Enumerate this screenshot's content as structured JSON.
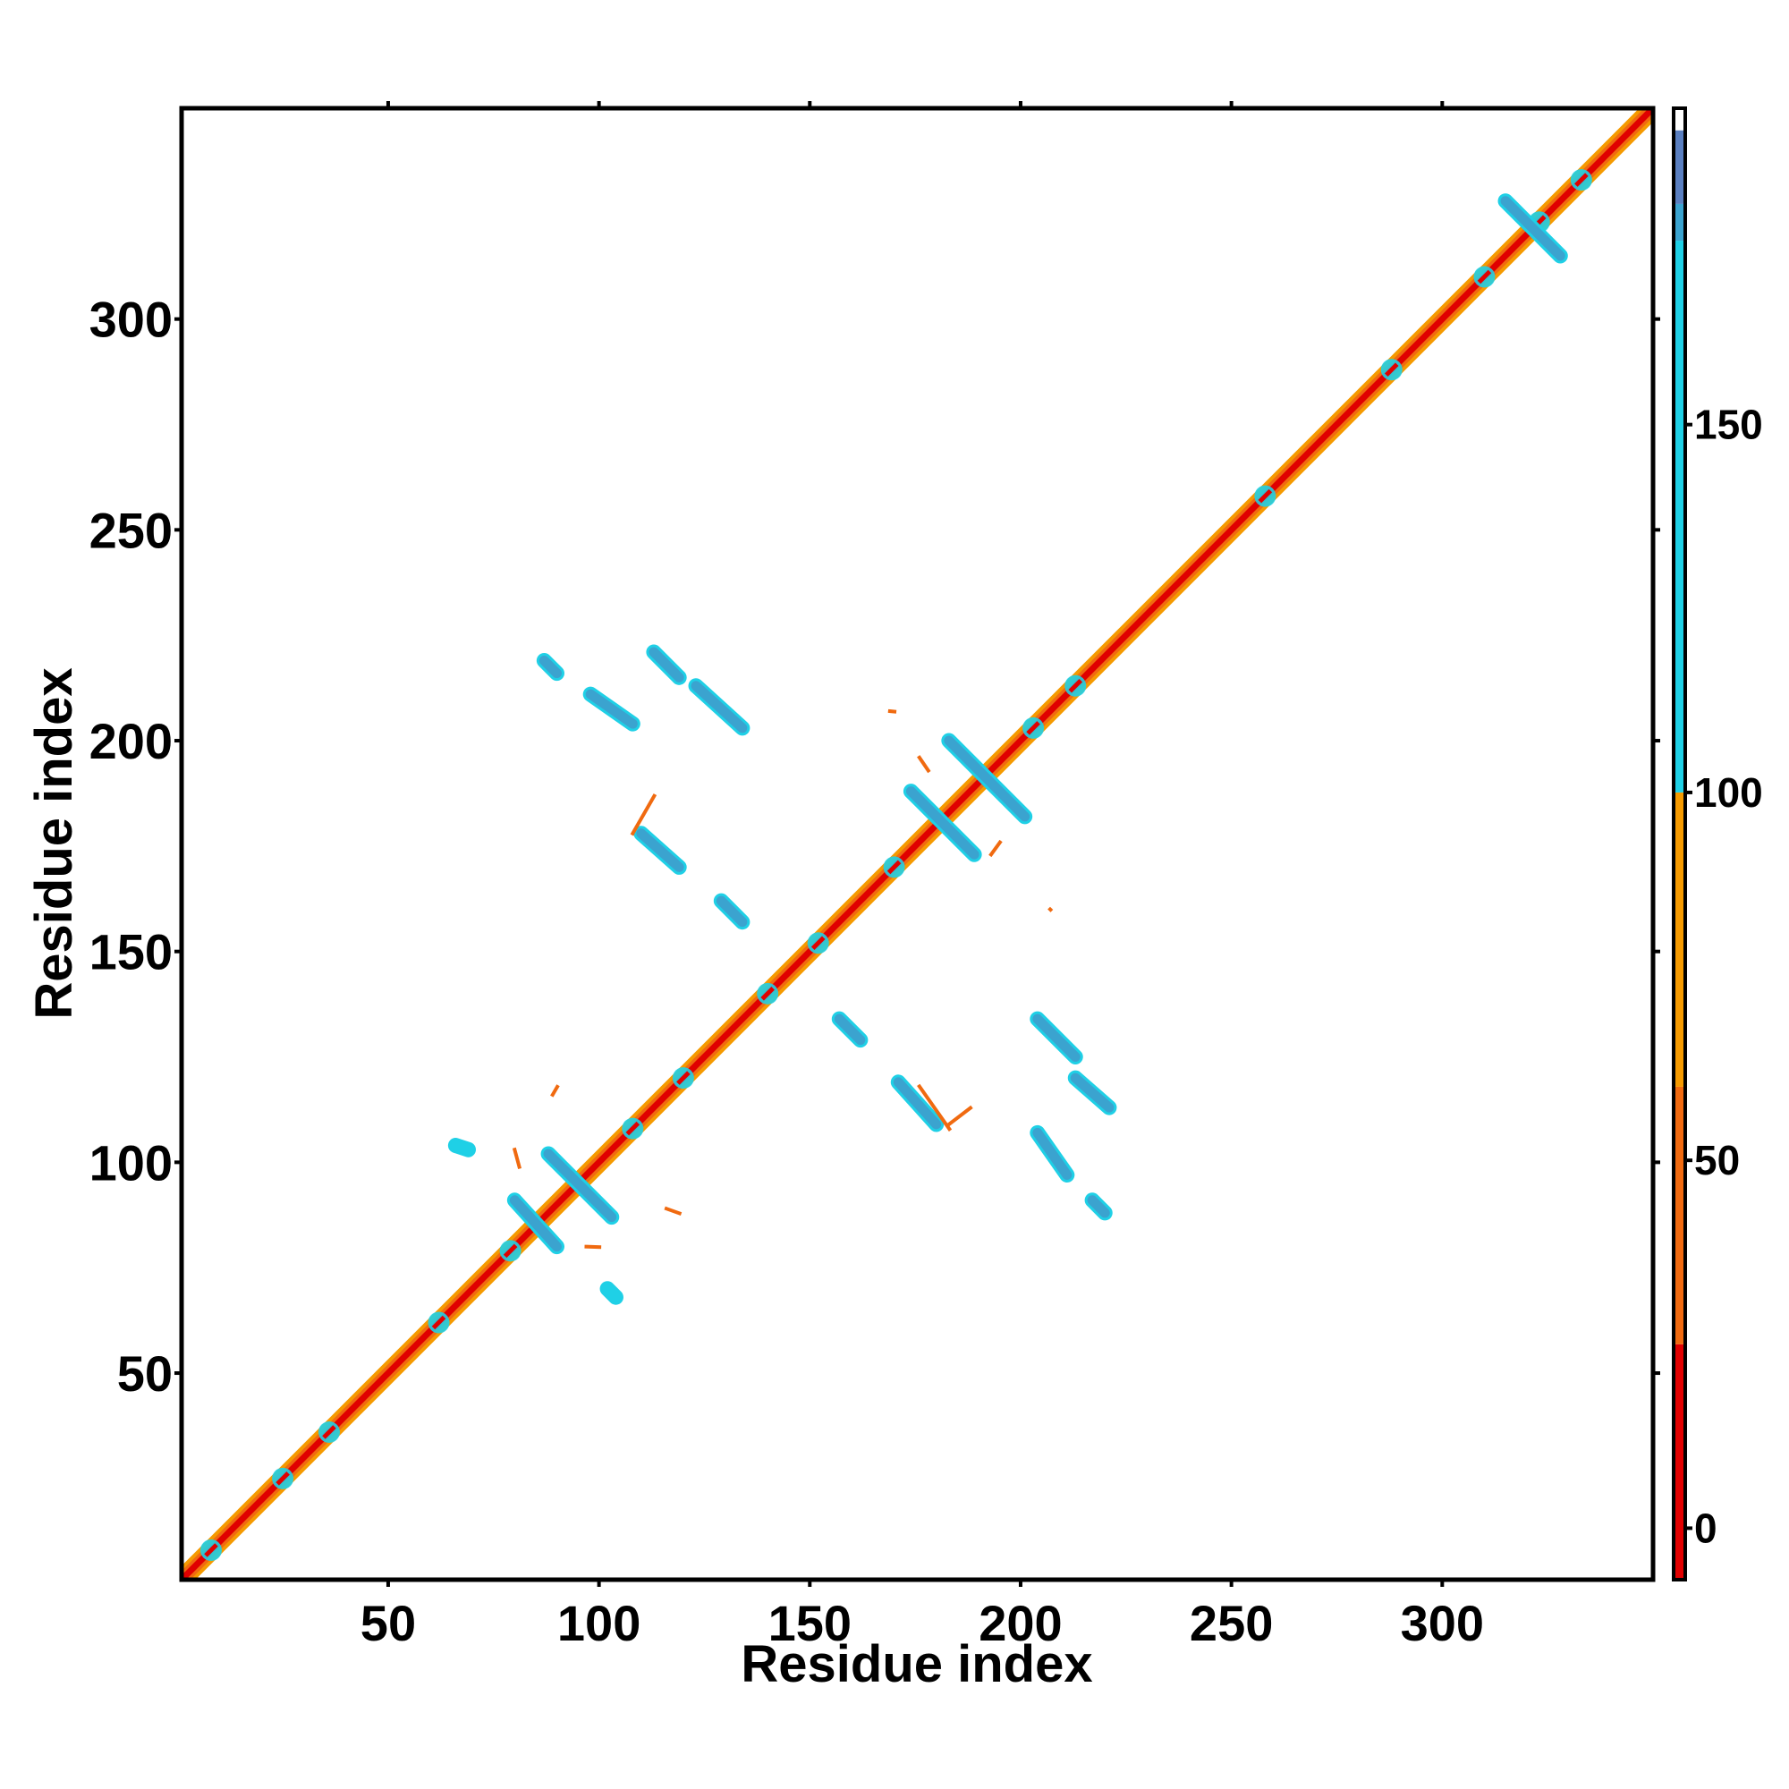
{
  "chart_data": {
    "type": "heatmap",
    "title": "",
    "xlabel": "Residue index",
    "ylabel": "Residue index",
    "xlim": [
      1,
      350
    ],
    "ylim": [
      1,
      350
    ],
    "x_ticks": [
      50,
      100,
      150,
      200,
      250,
      300
    ],
    "y_ticks": [
      50,
      100,
      150,
      200,
      250,
      300
    ],
    "grid": false,
    "legend": "colorbar right",
    "colorbar": {
      "ticks": [
        0,
        50,
        100,
        150
      ],
      "range": [
        -7,
        193
      ],
      "bands": [
        {
          "from": -7,
          "to": 25,
          "color": "#e00000"
        },
        {
          "from": 25,
          "to": 60,
          "color": "#f06a10"
        },
        {
          "from": 60,
          "to": 100,
          "color": "#f59a00"
        },
        {
          "from": 100,
          "to": 175,
          "color": "#1fd0e6"
        },
        {
          "from": 175,
          "to": 180,
          "color": "#3ba3cf"
        },
        {
          "from": 180,
          "to": 190,
          "color": "#5a7fc0"
        },
        {
          "from": 190,
          "to": 193,
          "color": "#ffffff"
        }
      ]
    },
    "diagonal": {
      "from": 1,
      "to": 350,
      "center_color": "#e00000",
      "edge_colors": [
        "#f06a10",
        "#f59a00"
      ]
    },
    "diagonal_clusters": [
      {
        "x": 8,
        "y": 8,
        "color": "#1fd0e6"
      },
      {
        "x": 25,
        "y": 25,
        "color": "#1fd0e6"
      },
      {
        "x": 36,
        "y": 36,
        "color": "#1fd0e6"
      },
      {
        "x": 62,
        "y": 62,
        "color": "#1fd0e6"
      },
      {
        "x": 79,
        "y": 79,
        "color": "#1fd0e6"
      },
      {
        "x": 108,
        "y": 108,
        "color": "#1fd0e6"
      },
      {
        "x": 120,
        "y": 120,
        "color": "#1fd0e6"
      },
      {
        "x": 140,
        "y": 140,
        "color": "#1fd0e6"
      },
      {
        "x": 152,
        "y": 152,
        "color": "#1fd0e6"
      },
      {
        "x": 170,
        "y": 170,
        "color": "#1fd0e6"
      },
      {
        "x": 203,
        "y": 203,
        "color": "#1fd0e6"
      },
      {
        "x": 213,
        "y": 213,
        "color": "#1fd0e6"
      },
      {
        "x": 258,
        "y": 258,
        "color": "#1fd0e6"
      },
      {
        "x": 288,
        "y": 288,
        "color": "#1fd0e6"
      },
      {
        "x": 310,
        "y": 310,
        "color": "#1fd0e6"
      },
      {
        "x": 323,
        "y": 323,
        "color": "#1fd0e6"
      },
      {
        "x": 333,
        "y": 333,
        "color": "#1fd0e6"
      }
    ],
    "contact_bands": [
      {
        "x1": 80,
        "y1": 91,
        "x2": 90,
        "y2": 80,
        "color": "#3ba3cf",
        "edge": "#1fd0e6"
      },
      {
        "x1": 88,
        "y1": 102,
        "x2": 103,
        "y2": 87,
        "color": "#3ba3cf",
        "edge": "#1fd0e6"
      },
      {
        "x1": 174,
        "y1": 188,
        "x2": 189,
        "y2": 173,
        "color": "#3ba3cf",
        "edge": "#1fd0e6"
      },
      {
        "x1": 183,
        "y1": 200,
        "x2": 201,
        "y2": 182,
        "color": "#3ba3cf",
        "edge": "#1fd0e6"
      },
      {
        "x1": 315,
        "y1": 328,
        "x2": 328,
        "y2": 315,
        "color": "#3ba3cf",
        "edge": "#1fd0e6"
      },
      {
        "x1": 87,
        "y1": 219,
        "x2": 90,
        "y2": 216,
        "color": "#3ba3cf",
        "edge": "#1fd0e6"
      },
      {
        "x1": 98,
        "y1": 211,
        "x2": 108,
        "y2": 204,
        "color": "#3ba3cf",
        "edge": "#1fd0e6"
      },
      {
        "x1": 113,
        "y1": 221,
        "x2": 119,
        "y2": 215,
        "color": "#3ba3cf",
        "edge": "#1fd0e6"
      },
      {
        "x1": 123,
        "y1": 213,
        "x2": 134,
        "y2": 203,
        "color": "#3ba3cf",
        "edge": "#1fd0e6"
      },
      {
        "x1": 110,
        "y1": 178,
        "x2": 119,
        "y2": 170,
        "color": "#3ba3cf",
        "edge": "#1fd0e6"
      },
      {
        "x1": 129,
        "y1": 162,
        "x2": 134,
        "y2": 157,
        "color": "#3ba3cf",
        "edge": "#1fd0e6"
      },
      {
        "x1": 157,
        "y1": 134,
        "x2": 162,
        "y2": 129,
        "color": "#3ba3cf",
        "edge": "#1fd0e6"
      },
      {
        "x1": 171,
        "y1": 119,
        "x2": 180,
        "y2": 109,
        "color": "#3ba3cf",
        "edge": "#1fd0e6"
      },
      {
        "x1": 204,
        "y1": 134,
        "x2": 213,
        "y2": 125,
        "color": "#3ba3cf",
        "edge": "#1fd0e6"
      },
      {
        "x1": 213,
        "y1": 120,
        "x2": 221,
        "y2": 113,
        "color": "#3ba3cf",
        "edge": "#1fd0e6"
      },
      {
        "x1": 204,
        "y1": 107,
        "x2": 211,
        "y2": 97,
        "color": "#3ba3cf",
        "edge": "#1fd0e6"
      },
      {
        "x1": 217,
        "y1": 91,
        "x2": 220,
        "y2": 88,
        "color": "#3ba3cf",
        "edge": "#1fd0e6"
      },
      {
        "x1": 66,
        "y1": 104,
        "x2": 69,
        "y2": 103,
        "color": "#1fd0e6",
        "edge": "#1fd0e6"
      },
      {
        "x1": 102,
        "y1": 70,
        "x2": 104,
        "y2": 68,
        "color": "#1fd0e6",
        "edge": "#1fd0e6"
      }
    ],
    "orange_marks": [
      {
        "x1": 108,
        "y1": 178,
        "x2": 113,
        "y2": 187,
        "color": "#f06a10"
      },
      {
        "x1": 176,
        "y1": 118,
        "x2": 183,
        "y2": 108,
        "color": "#f06a10"
      },
      {
        "x1": 183,
        "y1": 109,
        "x2": 188,
        "y2": 113,
        "color": "#f06a10"
      },
      {
        "x1": 80,
        "y1": 103,
        "x2": 81,
        "y2": 99,
        "color": "#f06a10"
      },
      {
        "x1": 116,
        "y1": 89,
        "x2": 119,
        "y2": 88,
        "color": "#f06a10"
      },
      {
        "x1": 97,
        "y1": 80,
        "x2": 100,
        "y2": 80,
        "color": "#f06a10"
      },
      {
        "x1": 89,
        "y1": 116,
        "x2": 90,
        "y2": 118,
        "color": "#f06a10"
      },
      {
        "x1": 193,
        "y1": 173,
        "x2": 195,
        "y2": 176,
        "color": "#f06a10"
      },
      {
        "x1": 176,
        "y1": 196,
        "x2": 178,
        "y2": 193,
        "color": "#f06a10"
      },
      {
        "x1": 169,
        "y1": 207,
        "x2": 170,
        "y2": 207,
        "color": "#f06a10"
      },
      {
        "x1": 207,
        "y1": 160,
        "x2": 207,
        "y2": 160,
        "color": "#f06a10"
      }
    ]
  }
}
